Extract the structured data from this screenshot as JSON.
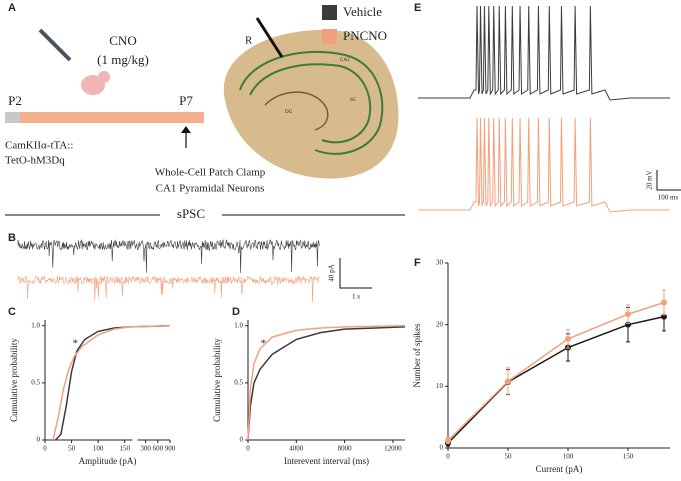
{
  "panel_labels": [
    "A",
    "B",
    "C",
    "D",
    "E",
    "F"
  ],
  "legend": [
    {
      "name": "Vehicle",
      "color": "#3b3b3b"
    },
    {
      "name": "PNCNO",
      "color": "#f4a07c"
    }
  ],
  "schematic": {
    "drug": "CNO",
    "dose": "(1 mg/kg)",
    "start": "P2",
    "end": "P7",
    "genotype": [
      "CamKIIα-tTA::",
      "TetO-hM3Dq"
    ],
    "recording": [
      "Whole-Cell Patch Clamp",
      "CA1 Pyramidal Neurons"
    ],
    "electrode": "R",
    "regions": [
      "CA1",
      "DG",
      "SC"
    ]
  },
  "traces": {
    "title": "sPSC",
    "current_scale": "40 pA",
    "time_scale": "1 s",
    "voltage_scale": "20 mV",
    "spike_time_scale": "100 ms"
  },
  "chart_data": [
    {
      "type": "line",
      "x_label": "Amplitude (pA)",
      "y_label": "Cumulative probability",
      "annotation": "*",
      "xlim": [
        0,
        900
      ],
      "xbreak": 160,
      "xticks": [
        0,
        50,
        100,
        150,
        300,
        600,
        900
      ],
      "ylim": [
        0,
        1.05
      ],
      "yticks": [
        0,
        0.5,
        {
          "value": 1,
          "label": "1.0"
        }
      ],
      "series": [
        {
          "name": "Vehicle",
          "color": "#3b3b3b",
          "x": [
            20,
            30,
            40,
            50,
            60,
            75,
            100,
            130,
            160,
            900
          ],
          "values": [
            0,
            0.05,
            0.3,
            0.6,
            0.78,
            0.88,
            0.95,
            0.98,
            0.99,
            1
          ]
        },
        {
          "name": "PNCNO",
          "color": "#f4a07c",
          "x": [
            15,
            25,
            35,
            45,
            55,
            70,
            100,
            130,
            160,
            900
          ],
          "values": [
            0,
            0.2,
            0.45,
            0.62,
            0.73,
            0.82,
            0.92,
            0.97,
            0.99,
            1
          ]
        }
      ]
    },
    {
      "type": "line",
      "x_label": "Interevent interval (ms)",
      "y_label": "Cumulative probability",
      "annotation": "*",
      "xlim": [
        0,
        13000
      ],
      "xticks": [
        0,
        4000,
        8000,
        12000
      ],
      "ylim": [
        0,
        1.05
      ],
      "yticks": [
        0,
        0.5,
        {
          "value": 1,
          "label": "1.0"
        }
      ],
      "series": [
        {
          "name": "Vehicle",
          "color": "#3b3b3b",
          "x": [
            0,
            200,
            500,
            1000,
            2000,
            4000,
            6000,
            8000,
            13000
          ],
          "values": [
            0,
            0.3,
            0.5,
            0.62,
            0.75,
            0.88,
            0.94,
            0.97,
            0.99
          ]
        },
        {
          "name": "PNCNO",
          "color": "#f4a07c",
          "x": [
            0,
            200,
            500,
            1000,
            2000,
            4000,
            6000,
            8000,
            13000
          ],
          "values": [
            0,
            0.45,
            0.67,
            0.8,
            0.9,
            0.96,
            0.98,
            0.99,
            1
          ]
        }
      ]
    },
    {
      "type": "line",
      "x_label": "Current (pA)",
      "y_label": "Number of spikes",
      "markers": true,
      "xlim": [
        0,
        185
      ],
      "xticks": [
        0,
        50,
        100,
        150
      ],
      "ylim": [
        0,
        30
      ],
      "yticks": [
        0,
        10,
        20,
        30
      ],
      "series": [
        {
          "name": "Vehicle",
          "color": "#1a1a1a",
          "x": [
            0,
            50,
            100,
            150,
            180
          ],
          "values": [
            0.8,
            10.7,
            16.3,
            20,
            21.3
          ],
          "errors": [
            0.5,
            2,
            2.2,
            2.8,
            2.3
          ]
        },
        {
          "name": "PNCNO",
          "color": "#f4a07c",
          "x": [
            0,
            50,
            100,
            150,
            180
          ],
          "values": [
            1.2,
            10.8,
            17.7,
            21.7,
            23.6
          ],
          "errors": [
            0.5,
            2.2,
            1.5,
            1.5,
            2
          ]
        }
      ]
    }
  ]
}
